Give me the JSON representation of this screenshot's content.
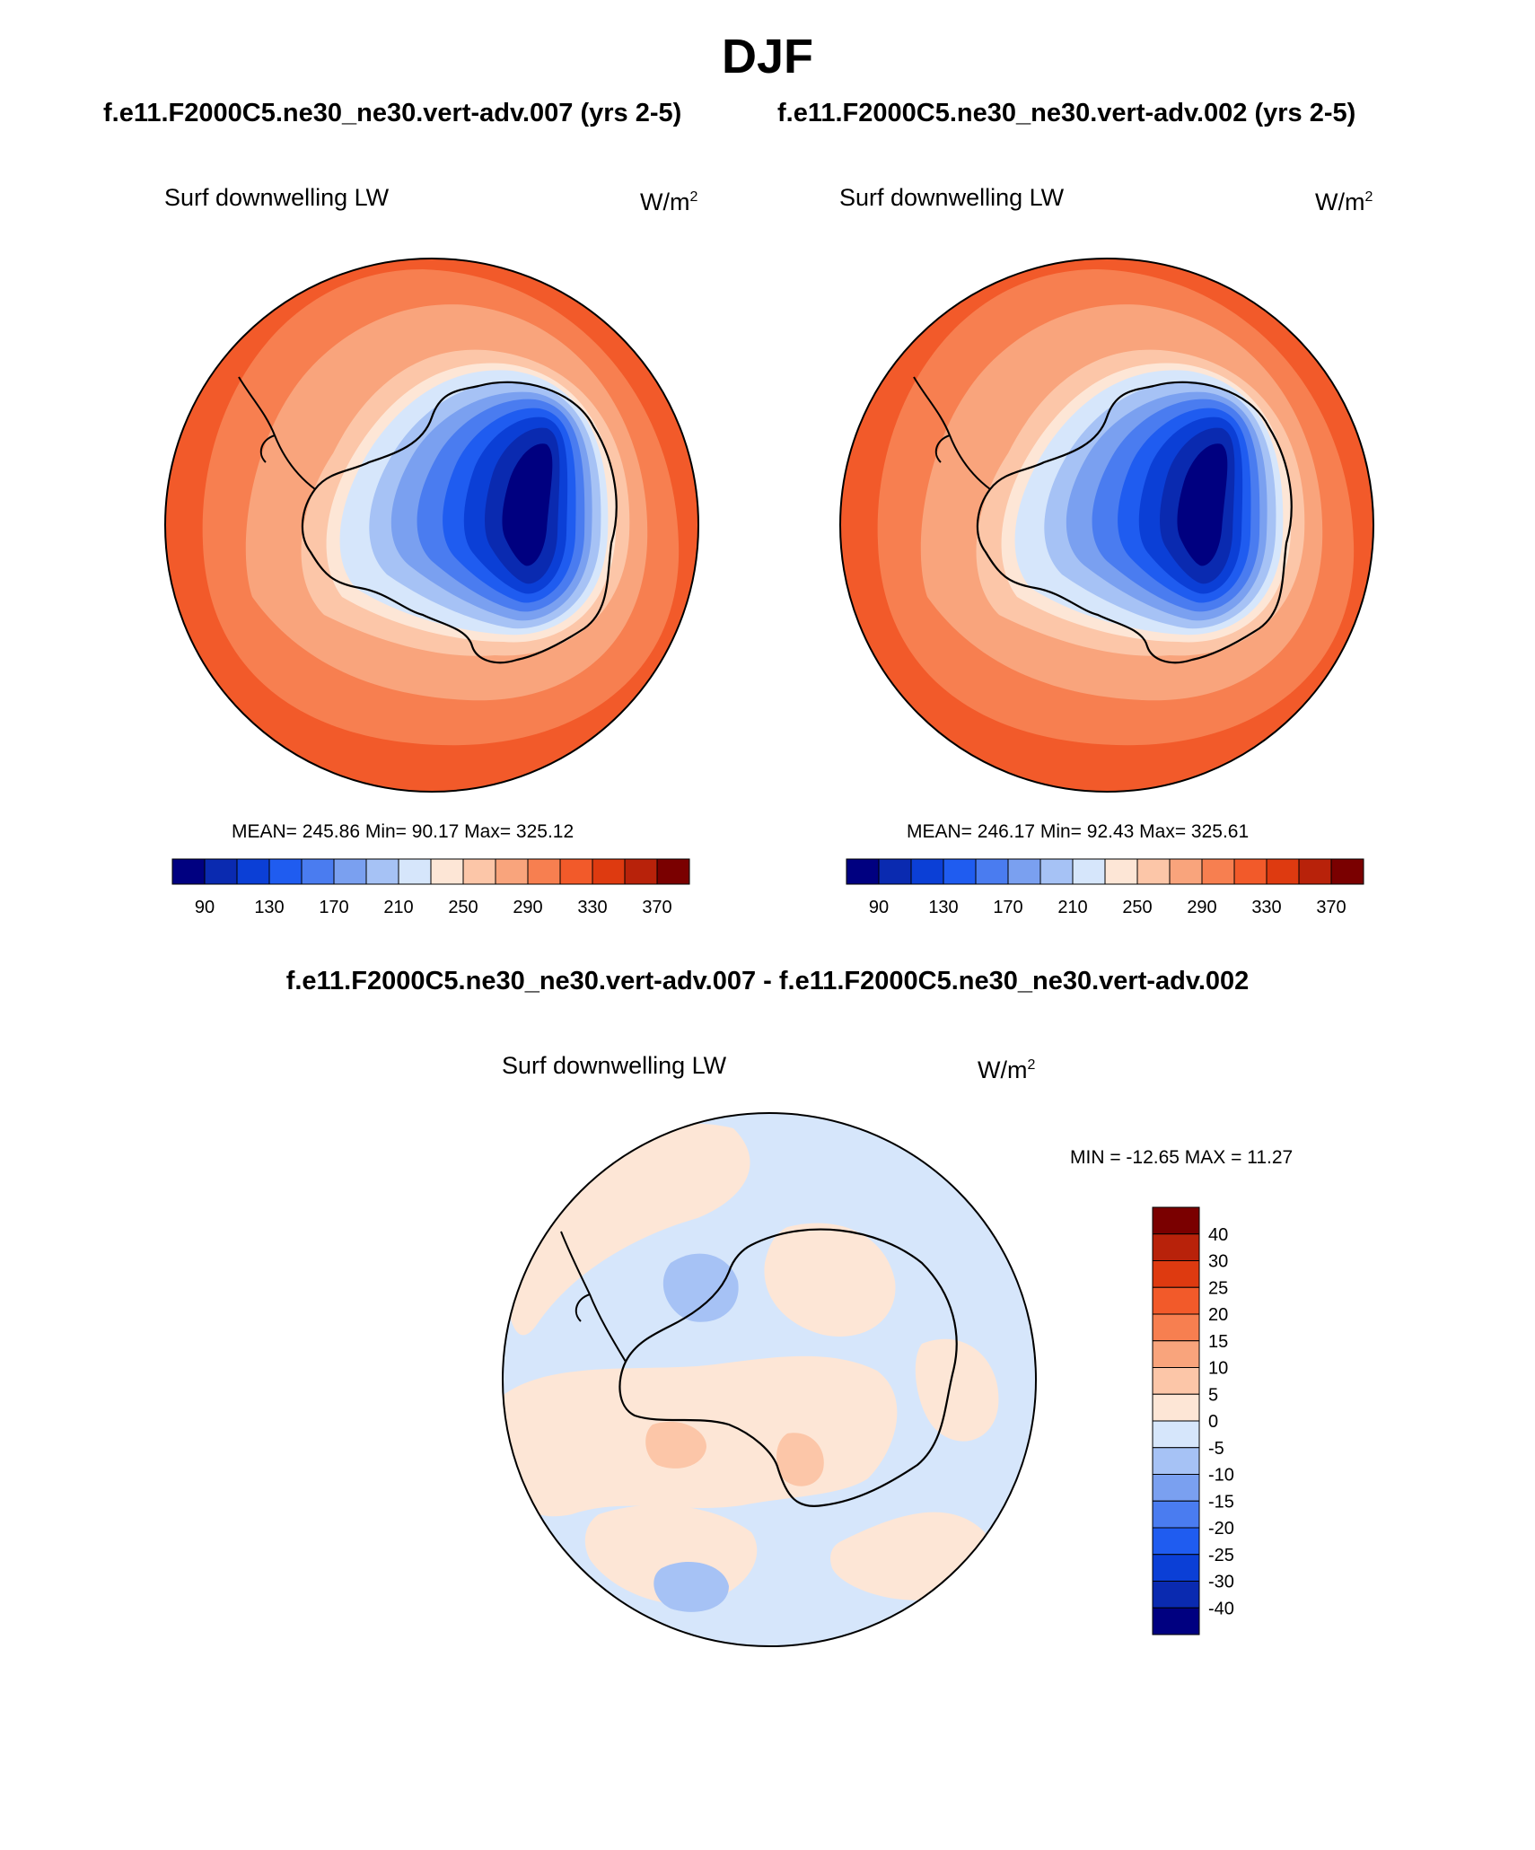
{
  "title": "DJF",
  "cases": {
    "left": "f.e11.F2000C5.ne30_ne30.vert-adv.007 (yrs 2-5)",
    "right": "f.e11.F2000C5.ne30_ne30.vert-adv.002 (yrs 2-5)"
  },
  "diff_title": "f.e11.F2000C5.ne30_ne30.vert-adv.007 - f.e11.F2000C5.ne30_ne30.vert-adv.002",
  "panels": [
    {
      "variable": "Surf downwelling LW",
      "units": "W/m",
      "units_exp": "2",
      "stats": "MEAN= 245.86  Min=  90.17  Max= 325.12"
    },
    {
      "variable": "Surf downwelling LW",
      "units": "W/m",
      "units_exp": "2",
      "stats": "MEAN= 246.17  Min=  92.43  Max= 325.61"
    },
    {
      "variable": "Surf downwelling LW",
      "units": "W/m",
      "units_exp": "2",
      "stats": "MIN = -12.65 MAX =  11.27"
    }
  ],
  "colorbar_main": {
    "colors": [
      "#000080",
      "#0a2ab0",
      "#0b3fd6",
      "#1f5cf0",
      "#4a7cf0",
      "#7aa0f0",
      "#a6c2f5",
      "#d6e6fb",
      "#fde6d6",
      "#fcc6a8",
      "#f9a47c",
      "#f77f50",
      "#f25a2a",
      "#de3a10",
      "#b8220a",
      "#7a0000"
    ],
    "labels": [
      "90",
      "130",
      "170",
      "210",
      "250",
      "290",
      "330",
      "370"
    ]
  },
  "colorbar_diff": {
    "colors": [
      "#000080",
      "#0a2ab0",
      "#0b3fd6",
      "#1f5cf0",
      "#4a7cf0",
      "#7aa0f0",
      "#a6c2f5",
      "#d6e6fb",
      "#fde6d6",
      "#fcc6a8",
      "#f9a47c",
      "#f77f50",
      "#f25a2a",
      "#de3a10",
      "#b8220a",
      "#7a0000"
    ],
    "labels": [
      "40",
      "30",
      "25",
      "20",
      "15",
      "10",
      "5",
      "0",
      "-5",
      "-10",
      "-15",
      "-20",
      "-25",
      "-30",
      "-40"
    ]
  },
  "map_colors": {
    "ocean_outer": "#f25a2a",
    "ocean_mid": "#f77f50",
    "ocean_inner": "#f9a47c",
    "coast_band1": "#fcc6a8",
    "coast_band2": "#fde6d6",
    "ice1": "#d6e6fb",
    "ice2": "#a6c2f5",
    "ice3": "#7aa0f0",
    "ice4": "#4a7cf0",
    "ice5": "#1f5cf0",
    "ice6": "#0b3fd6",
    "ice7": "#0a2ab0",
    "ice8": "#000080",
    "diff_neg": "#d6e6fb",
    "diff_pos": "#fde6d6",
    "diff_neg2": "#a6c2f5",
    "diff_pos2": "#fcc6a8"
  }
}
